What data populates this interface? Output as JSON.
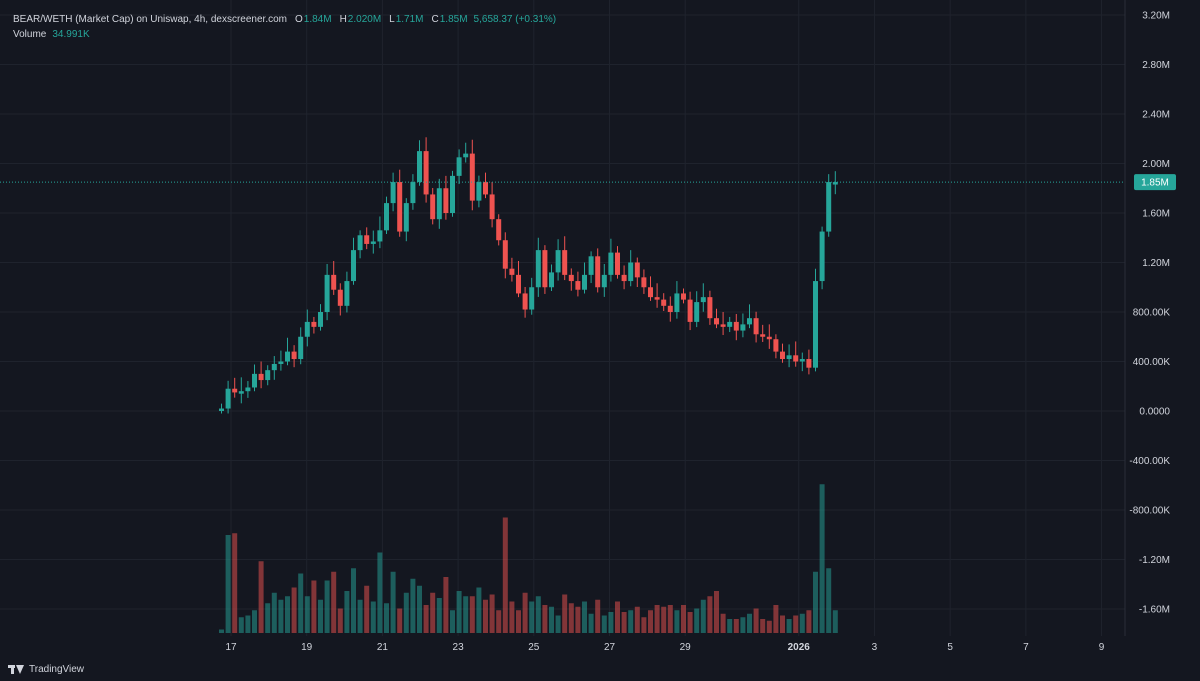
{
  "legend": {
    "title": "BEAR/WETH (Market Cap) on Uniswap, 4h, dexscreener.com",
    "o_label": "O",
    "o_value": "1.84M",
    "h_label": "H",
    "h_value": "2.020M",
    "l_label": "L",
    "l_value": "1.71M",
    "c_label": "C",
    "c_value": "1.85M",
    "change": "5,658.37 (+0.31%)",
    "volume_label": "Volume",
    "volume_value": "34.991K"
  },
  "footer": {
    "brand": "TradingView"
  },
  "colors": {
    "up": "#26a69a",
    "down": "#ef5350",
    "background": "#141720",
    "grid": "#1f232d",
    "text": "#d1d4dc"
  },
  "chart_data": {
    "type": "candlestick",
    "interval": "4h",
    "y_ticks": [
      "3.20M",
      "2.80M",
      "2.40M",
      "2.00M",
      "1.60M",
      "1.20M",
      "800.00K",
      "400.00K",
      "0.0000",
      "-400.00K",
      "-800.00K",
      "-1.20M",
      "-1.60M"
    ],
    "y_tick_values": [
      3.2,
      2.8,
      2.4,
      2.0,
      1.6,
      1.2,
      0.8,
      0.4,
      0.0,
      -0.4,
      -0.8,
      -1.2,
      -1.6
    ],
    "ylim_millions": [
      -1.75,
      3.25
    ],
    "x_ticks": [
      {
        "label": "17",
        "day": 17
      },
      {
        "label": "19",
        "day": 19
      },
      {
        "label": "21",
        "day": 21
      },
      {
        "label": "23",
        "day": 23
      },
      {
        "label": "25",
        "day": 25
      },
      {
        "label": "27",
        "day": 27
      },
      {
        "label": "29",
        "day": 29
      },
      {
        "label": "2026",
        "day": 32
      },
      {
        "label": "3",
        "day": 34
      },
      {
        "label": "5",
        "day": 36
      },
      {
        "label": "7",
        "day": 38
      },
      {
        "label": "9",
        "day": 40
      }
    ],
    "bold_tick": "2026",
    "price_label": "1.85M",
    "price_value": 1.85,
    "series_close": [
      0.02,
      0.18,
      0.15,
      0.16,
      0.19,
      0.3,
      0.25,
      0.33,
      0.38,
      0.4,
      0.48,
      0.42,
      0.6,
      0.72,
      0.68,
      0.8,
      1.1,
      0.98,
      0.85,
      1.05,
      1.3,
      1.42,
      1.35,
      1.37,
      1.46,
      1.68,
      1.85,
      1.45,
      1.68,
      1.85,
      2.1,
      1.75,
      1.55,
      1.8,
      1.6,
      1.9,
      2.05,
      2.08,
      1.7,
      1.85,
      1.75,
      1.55,
      1.38,
      1.15,
      1.1,
      0.95,
      0.82,
      1.0,
      1.3,
      1.0,
      1.12,
      1.3,
      1.1,
      1.05,
      0.98,
      1.1,
      1.25,
      1.0,
      1.1,
      1.28,
      1.1,
      1.05,
      1.2,
      1.08,
      1.0,
      0.92,
      0.9,
      0.85,
      0.8,
      0.95,
      0.9,
      0.72,
      0.88,
      0.92,
      0.75,
      0.7,
      0.68,
      0.72,
      0.65,
      0.7,
      0.75,
      0.62,
      0.6,
      0.58,
      0.48,
      0.42,
      0.45,
      0.4,
      0.42,
      0.35,
      1.05,
      1.45,
      1.85,
      1.85
    ],
    "series_volume": [
      2,
      56,
      57,
      9,
      10,
      13,
      41,
      17,
      23,
      19,
      21,
      26,
      34,
      21,
      30,
      19,
      30,
      35,
      14,
      24,
      37,
      19,
      27,
      18,
      46,
      17,
      35,
      14,
      23,
      31,
      27,
      16,
      23,
      20,
      32,
      13,
      24,
      21,
      21,
      26,
      19,
      22,
      13,
      66,
      18,
      13,
      23,
      18,
      21,
      16,
      15,
      10,
      22,
      17,
      15,
      18,
      11,
      19,
      10,
      12,
      18,
      12,
      13,
      15,
      9,
      13,
      16,
      15,
      16,
      13,
      16,
      12,
      14,
      19,
      21,
      24,
      11,
      8,
      8,
      9,
      11,
      14,
      8,
      7,
      16,
      10,
      8,
      10,
      11,
      13,
      35,
      85,
      37,
      13
    ],
    "series_direction": [
      1,
      1,
      0,
      1,
      1,
      1,
      0,
      1,
      1,
      1,
      1,
      0,
      1,
      1,
      0,
      1,
      1,
      0,
      0,
      1,
      1,
      1,
      0,
      1,
      1,
      1,
      1,
      0,
      1,
      1,
      1,
      0,
      0,
      1,
      0,
      1,
      1,
      1,
      0,
      1,
      0,
      0,
      0,
      0,
      0,
      0,
      0,
      1,
      1,
      0,
      1,
      1,
      0,
      0,
      0,
      1,
      1,
      0,
      1,
      1,
      0,
      0,
      1,
      0,
      0,
      0,
      0,
      0,
      0,
      1,
      0,
      0,
      1,
      1,
      0,
      0,
      0,
      1,
      0,
      1,
      1,
      0,
      0,
      0,
      0,
      0,
      1,
      0,
      1,
      0,
      1,
      1,
      1,
      1
    ]
  }
}
